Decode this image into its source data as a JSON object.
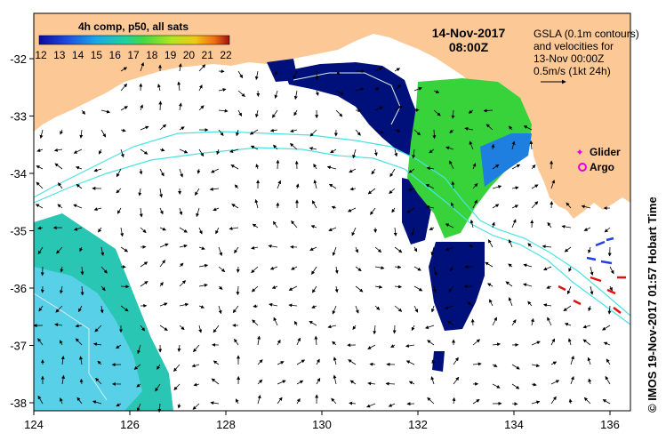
{
  "map": {
    "colorbar_title": "4h comp, p50, all sats",
    "colorbar_ticks": [
      "12",
      "13",
      "14",
      "15",
      "16",
      "17",
      "18",
      "19",
      "20",
      "21",
      "22"
    ],
    "date": "14-Nov-2017",
    "time": "08:00Z",
    "gsla_note": [
      "GSLA (0.1m contours)",
      "and velocities for",
      "13-Nov 00:00Z",
      "0.5m/s (1kt 24h)"
    ],
    "legend": {
      "glider": "Glider",
      "argo": "Argo"
    },
    "credit": "© IMOS 19-Nov-2017 01:57 Hobart Time",
    "x_ticks": [
      "124",
      "126",
      "128",
      "130",
      "132",
      "134",
      "136"
    ],
    "y_ticks": [
      "-32",
      "-33",
      "-34",
      "-35",
      "-36",
      "-37",
      "-38"
    ],
    "colors": {
      "land": "#fbc896",
      "ocean": "#ffffff",
      "contour": "#49e3e3",
      "cold_sst": "#00107a",
      "warm_sst": "#38d23a",
      "mid_sst": "#29c6b4",
      "glider": "#e000e0",
      "argo": "#e000e0"
    },
    "icons": [
      "arrow-icon",
      "glider-marker-icon",
      "argo-marker-icon"
    ]
  }
}
